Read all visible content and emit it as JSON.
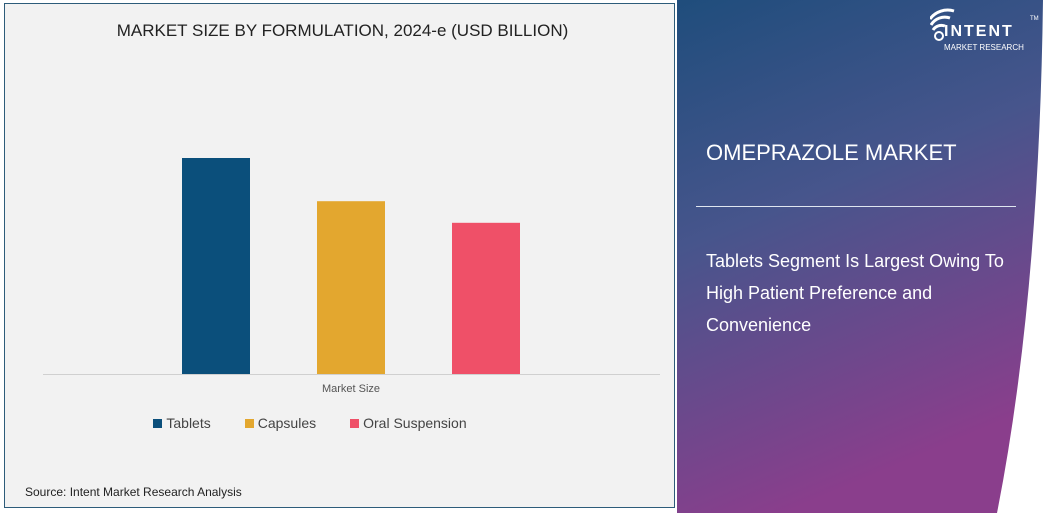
{
  "chart_data": {
    "type": "bar",
    "title": "MARKET SIZE BY FORMULATION, 2024-e (USD BILLION)",
    "categories": [
      "Market Size"
    ],
    "series": [
      {
        "name": "Tablets",
        "values": [
          100
        ],
        "color": "#0b4f7b"
      },
      {
        "name": "Capsules",
        "values": [
          80
        ],
        "color": "#e3a72f"
      },
      {
        "name": "Oral Suspension",
        "values": [
          70
        ],
        "color": "#ef5068"
      }
    ],
    "xlabel": "Market Size",
    "ylabel": "",
    "ylim": [
      0,
      100
    ],
    "grid": false,
    "legend": "bottom",
    "note": "relative values, no axis ticks shown"
  },
  "source": "Source:  Intent Market Research Analysis",
  "right": {
    "title": "OMEPRAZOLE MARKET",
    "description": "Tablets Segment Is Largest Owing To High Patient Preference and Convenience"
  },
  "logo": {
    "brand": "INTENT",
    "sub": "MARKET RESEARCH",
    "tm": "TM"
  }
}
